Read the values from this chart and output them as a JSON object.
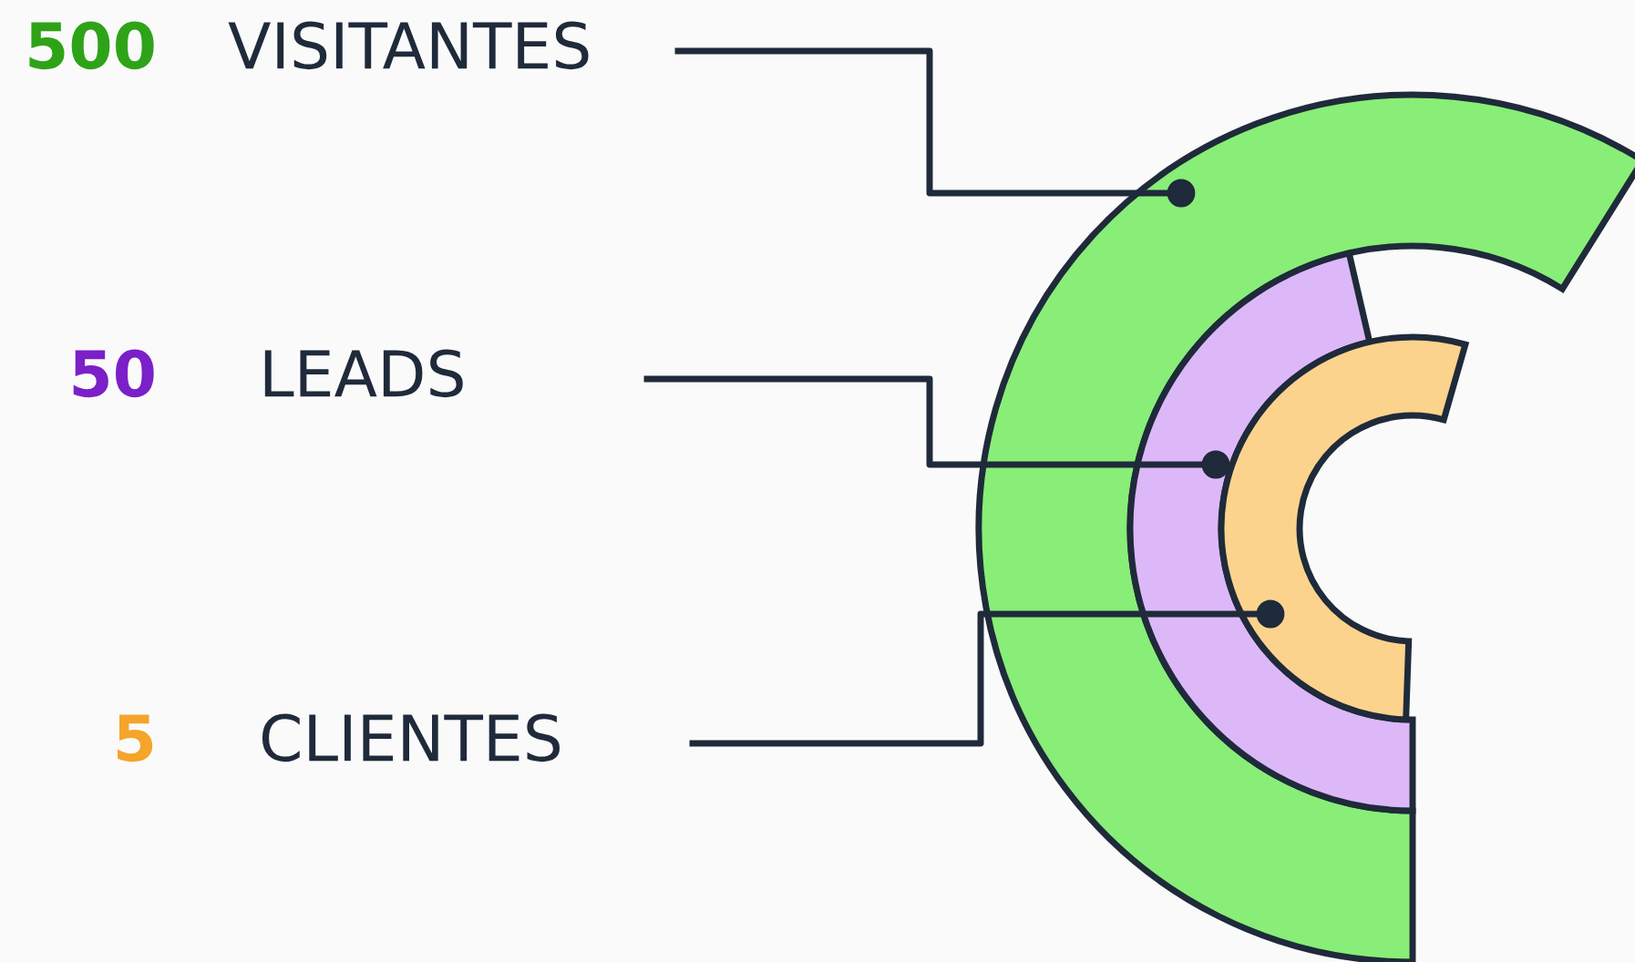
{
  "chart_data": {
    "type": "other",
    "categories": [
      "VISITANTES",
      "LEADS",
      "CLIENTES"
    ],
    "values": [
      500,
      50,
      5
    ],
    "data_labels": true,
    "colors": [
      "#88ee77",
      "#ddb8f8",
      "#fcd38d"
    ]
  }
}
